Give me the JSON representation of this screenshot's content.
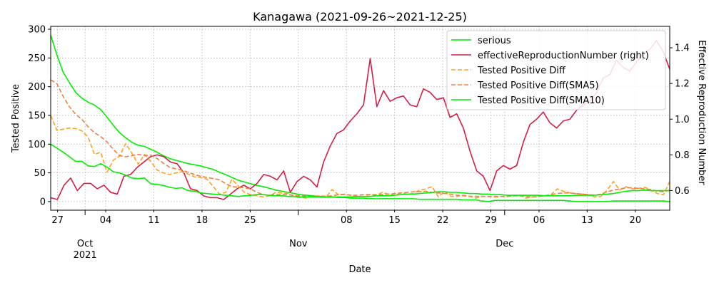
{
  "chart_data": {
    "type": "line",
    "title": "Kanagawa (2021-09-26~2021-12-25)",
    "xlabel": "Date",
    "ylabel_left": "Tested Positive",
    "ylabel_right": "Effective Reproduction Number",
    "x_range": [
      "2021-09-26",
      "2021-12-25"
    ],
    "ylim_left": [
      -15,
      305
    ],
    "ylim_right": [
      0.49,
      1.52
    ],
    "left_ticks": [
      0,
      50,
      100,
      150,
      200,
      250,
      300
    ],
    "right_ticks": [
      0.6,
      0.8,
      1.0,
      1.2,
      1.4
    ],
    "grid": true,
    "legend_position": "upper right",
    "x_ticks_major": [
      {
        "date": "2021-10-01",
        "label": "Oct",
        "sublabel": "2021"
      },
      {
        "date": "2021-11-01",
        "label": "Nov",
        "sublabel": ""
      },
      {
        "date": "2021-12-01",
        "label": "Dec",
        "sublabel": ""
      }
    ],
    "x_ticks_minor": [
      {
        "date": "2021-09-27",
        "label": "27"
      },
      {
        "date": "2021-10-04",
        "label": "04"
      },
      {
        "date": "2021-10-11",
        "label": "11"
      },
      {
        "date": "2021-10-18",
        "label": "18"
      },
      {
        "date": "2021-10-25",
        "label": "25"
      },
      {
        "date": "2021-11-08",
        "label": "08"
      },
      {
        "date": "2021-11-15",
        "label": "15"
      },
      {
        "date": "2021-11-22",
        "label": "22"
      },
      {
        "date": "2021-11-29",
        "label": "29"
      },
      {
        "date": "2021-12-06",
        "label": "06"
      },
      {
        "date": "2021-12-13",
        "label": "13"
      },
      {
        "date": "2021-12-20",
        "label": "20"
      }
    ],
    "series": [
      {
        "name": "serious",
        "axis": "left",
        "color": "#00ee00",
        "style": "solid",
        "values": [
          290,
          255,
          225,
          207,
          190,
          180,
          173,
          168,
          160,
          147,
          133,
          120,
          111,
          103,
          98,
          96,
          91,
          86,
          80,
          75,
          72,
          69,
          66,
          64,
          62,
          59,
          56,
          51,
          47,
          42,
          37,
          34,
          31,
          28,
          26,
          23,
          20,
          18,
          16,
          14,
          12,
          11,
          10,
          9,
          8,
          8,
          7,
          7,
          6,
          6,
          6,
          5,
          5,
          5,
          5,
          5,
          5,
          5,
          5,
          4,
          4,
          4,
          4,
          4,
          4,
          4,
          3,
          3,
          3,
          1,
          0,
          2,
          2,
          2,
          2,
          2,
          2,
          2,
          2,
          2,
          2,
          2,
          2,
          1,
          0,
          0,
          0,
          0,
          0,
          0,
          1,
          1,
          1,
          1,
          1,
          1,
          1,
          1,
          1,
          0
        ]
      },
      {
        "name": "effectiveReproductionNumber (right)",
        "axis": "right",
        "color": "#d41e44",
        "style": "solid",
        "values": [
          0.56,
          0.55,
          0.63,
          0.67,
          0.6,
          0.64,
          0.64,
          0.61,
          0.63,
          0.59,
          0.58,
          0.68,
          0.69,
          0.73,
          0.76,
          0.79,
          0.8,
          0.79,
          0.76,
          0.75,
          0.7,
          0.61,
          0.6,
          0.57,
          0.56,
          0.56,
          0.55,
          0.58,
          0.61,
          0.63,
          0.61,
          0.64,
          0.69,
          0.68,
          0.66,
          0.71,
          0.59,
          0.65,
          0.68,
          0.66,
          0.62,
          0.76,
          0.85,
          0.92,
          0.94,
          0.99,
          1.03,
          1.08,
          1.34,
          1.07,
          1.16,
          1.1,
          1.12,
          1.13,
          1.08,
          1.07,
          1.17,
          1.15,
          1.11,
          1.12,
          1.01,
          1.03,
          0.95,
          0.82,
          0.71,
          0.68,
          0.6,
          0.71,
          0.74,
          0.72,
          0.74,
          0.87,
          0.97,
          1.0,
          1.04,
          0.98,
          0.95,
          0.99,
          1.0,
          1.05,
          1.08,
          1.1,
          1.15,
          1.23,
          1.25,
          1.33,
          1.29,
          1.27,
          1.32,
          1.37,
          1.39,
          1.44,
          1.38,
          1.28
        ]
      },
      {
        "name": "Tested Positive Diff",
        "axis": "left",
        "color": "#ffa020",
        "style": "dashed",
        "values": [
          150,
          124,
          126,
          128,
          127,
          123,
          112,
          82,
          86,
          51,
          72,
          79,
          101,
          84,
          65,
          82,
          70,
          55,
          50,
          47,
          50,
          52,
          48,
          43,
          42,
          39,
          26,
          13,
          16,
          39,
          27,
          16,
          12,
          10,
          8,
          10,
          16,
          15,
          14,
          8,
          7,
          6,
          10,
          9,
          7,
          21,
          12,
          13,
          11,
          9,
          9,
          12,
          10,
          16,
          13,
          11,
          15,
          13,
          14,
          20,
          22,
          26,
          8,
          18,
          9,
          9,
          11,
          9,
          6,
          9,
          9,
          8,
          9,
          9,
          10,
          11,
          6,
          8,
          9,
          10,
          12,
          22,
          18,
          15,
          14,
          13,
          12,
          8,
          9,
          20,
          35,
          20,
          26,
          22,
          23,
          25,
          20,
          14,
          12,
          35
        ]
      },
      {
        "name": "Tested Positive Diff(SMA5)",
        "axis": "left",
        "color": "#f08040",
        "style": "dashed",
        "values": [
          212,
          205,
          183,
          165,
          152,
          143,
          130,
          120,
          113,
          104,
          91,
          80,
          78,
          80,
          82,
          80,
          81,
          75,
          67,
          60,
          57,
          55,
          51,
          47,
          44,
          42,
          40,
          38,
          31,
          26,
          25,
          24,
          22,
          16,
          12,
          11,
          12,
          12,
          12,
          11,
          10,
          9,
          9,
          10,
          9,
          10,
          12,
          12,
          11,
          11,
          12,
          12,
          12,
          12,
          13,
          14,
          15,
          16,
          17,
          17,
          18,
          16,
          15,
          14,
          13,
          11,
          10,
          9,
          9,
          9,
          9,
          9,
          9,
          9,
          10,
          10,
          9,
          8,
          9,
          10,
          12,
          14,
          15,
          15,
          14,
          13,
          12,
          11,
          13,
          17,
          20,
          22,
          24,
          24,
          23,
          22,
          21,
          18,
          17,
          20
        ]
      },
      {
        "name": "Tested Positive Diff(SMA10)",
        "axis": "left",
        "color": "#00ee00",
        "style": "solid",
        "values": [
          100,
          93,
          86,
          78,
          70,
          70,
          62,
          61,
          66,
          60,
          52,
          50,
          46,
          41,
          40,
          41,
          31,
          30,
          28,
          25,
          23,
          24,
          19,
          18,
          15,
          14,
          13,
          12,
          11,
          10,
          9,
          10,
          11,
          12,
          12,
          11,
          10,
          10,
          9,
          9,
          8,
          8,
          8,
          8,
          8,
          8,
          8,
          8,
          8,
          9,
          9,
          9,
          10,
          10,
          10,
          11,
          12,
          13,
          13,
          14,
          15,
          16,
          17,
          17,
          16,
          16,
          15,
          14,
          14,
          13,
          13,
          12,
          12,
          11,
          11,
          11,
          11,
          11,
          11,
          10,
          10,
          10,
          10,
          10,
          11,
          11,
          11,
          11,
          12,
          13,
          14,
          16,
          18,
          19,
          19,
          20,
          19,
          19,
          19,
          19
        ]
      }
    ]
  }
}
